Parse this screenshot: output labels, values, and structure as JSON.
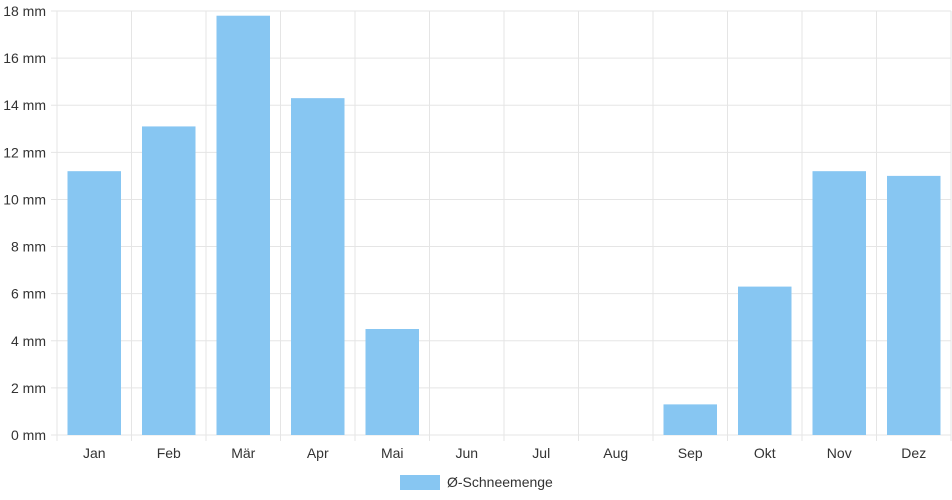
{
  "chart_data": {
    "type": "bar",
    "title": "",
    "xlabel": "",
    "ylabel": "",
    "ylim": [
      0,
      18
    ],
    "y_tick_step": 2,
    "y_unit": "mm",
    "grid": true,
    "legend_position": "bottom",
    "categories": [
      "Jan",
      "Feb",
      "Mär",
      "Apr",
      "Mai",
      "Jun",
      "Jul",
      "Aug",
      "Sep",
      "Okt",
      "Nov",
      "Dez"
    ],
    "series": [
      {
        "name": "Ø-Schneemenge",
        "color": "#87C6F2",
        "values": [
          11.2,
          13.1,
          17.8,
          14.3,
          4.5,
          0,
          0,
          0,
          1.3,
          6.3,
          11.2,
          11.0
        ]
      }
    ]
  }
}
